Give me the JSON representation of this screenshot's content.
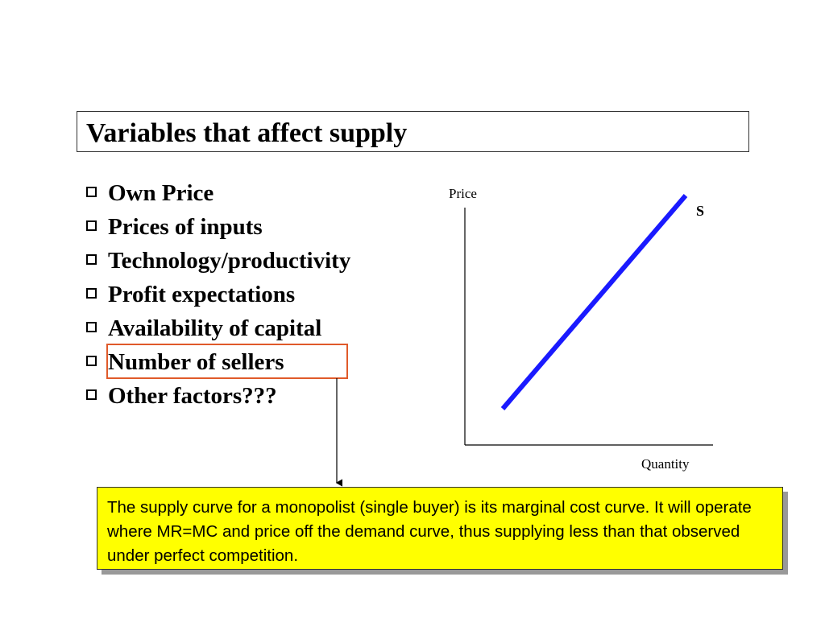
{
  "title": "Variables that affect supply",
  "bullets": [
    "Own Price",
    "Prices of inputs",
    "Technology/productivity",
    "Profit expectations",
    "Availability of capital",
    "Number of sellers",
    "Other factors???"
  ],
  "graph": {
    "y_label": "Price",
    "x_label": "Quantity",
    "curve_label": "S"
  },
  "callout": {
    "text": "The supply curve for a monopolist (single buyer) is its marginal cost curve. It will operate where MR=MC and price off the demand curve, thus supplying less than that observed under perfect competition."
  }
}
